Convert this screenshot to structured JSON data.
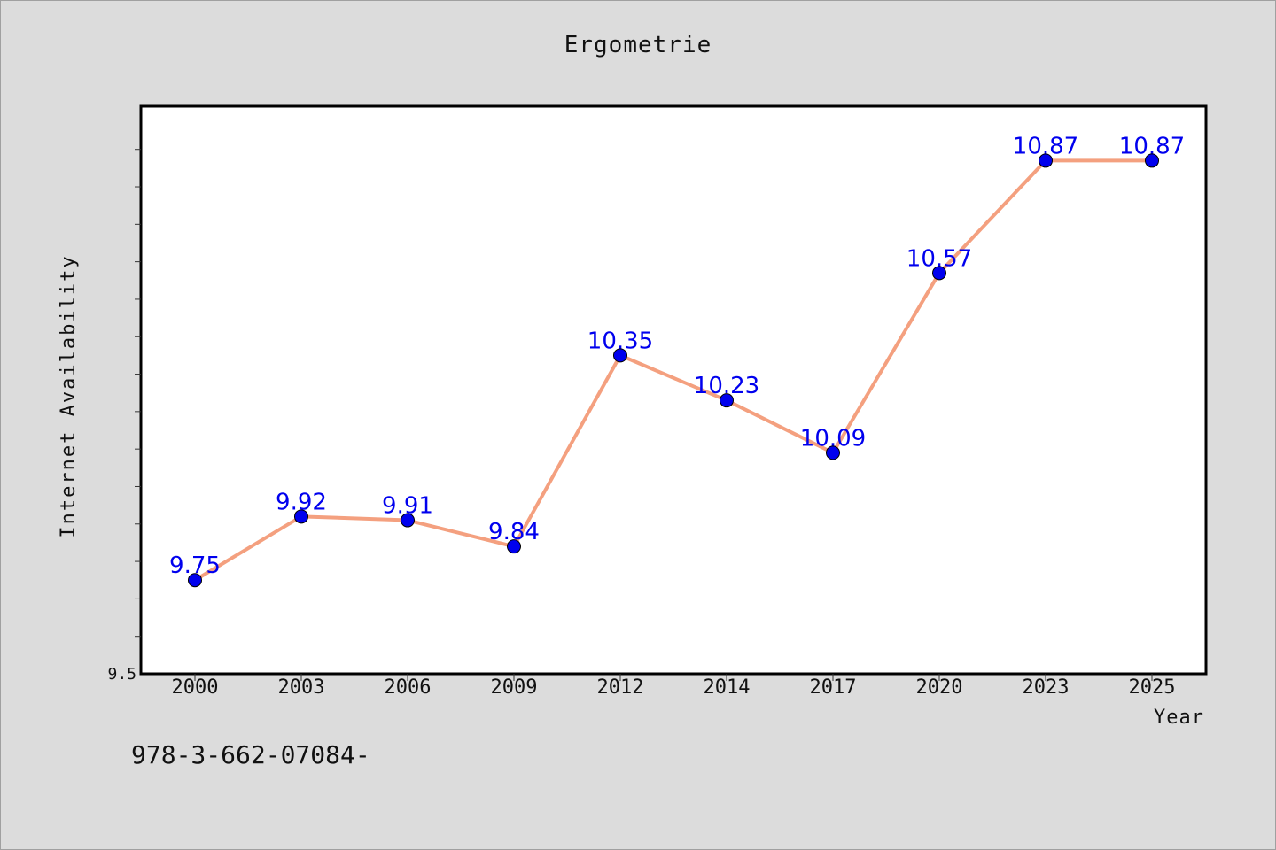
{
  "title": "Ergometrie",
  "footer_text": "978-3-662-07084-",
  "chart_data": {
    "type": "line",
    "title": "Ergometrie",
    "xlabel": "Year",
    "ylabel": "Internet Availability",
    "categories": [
      "2000",
      "2003",
      "2006",
      "2009",
      "2012",
      "2014",
      "2017",
      "2020",
      "2023",
      "2025"
    ],
    "series": [
      {
        "values": [
          9.75,
          9.92,
          9.91,
          9.84,
          10.35,
          10.23,
          10.09,
          10.57,
          10.87,
          10.87
        ],
        "labels": [
          "9.75",
          "9.92",
          "9.91",
          "9.84",
          "10.35",
          "10.23",
          "10.09",
          "10.57",
          "10.87",
          "10.87"
        ]
      }
    ],
    "ylim": [
      9.5,
      11.0
    ],
    "yticks_labeled": [
      "9.5"
    ],
    "grid": false,
    "legend": "none",
    "colors": {
      "line": "#f4a07f",
      "marker": "#0000ee",
      "data_label": "#0000ee",
      "plot_background": "#ffffff",
      "page_background": "#dcdcdc"
    }
  }
}
